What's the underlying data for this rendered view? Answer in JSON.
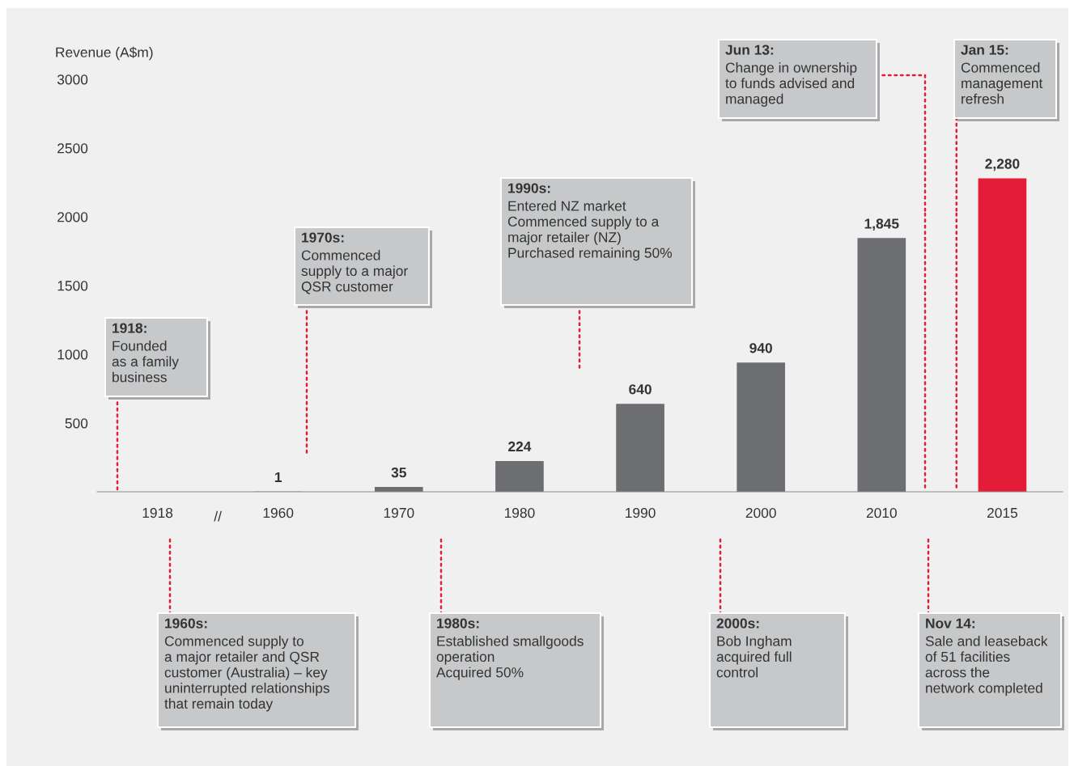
{
  "chart_data": {
    "type": "bar",
    "ylabel": "Revenue (A$m)",
    "categories": [
      "1918",
      "1960",
      "1970",
      "1980",
      "1990",
      "2000",
      "2010",
      "2015"
    ],
    "values": [
      null,
      1,
      35,
      224,
      640,
      940,
      1845,
      2280
    ],
    "colors": [
      "#6d6e71",
      "#6d6e71",
      "#6d6e71",
      "#6d6e71",
      "#6d6e71",
      "#6d6e71",
      "#6d6e71",
      "#e31d38"
    ],
    "value_labels": [
      null,
      "1",
      "35",
      "224",
      "640",
      "940",
      "1,845",
      "2,280"
    ],
    "ylim": [
      0,
      3000
    ],
    "yticks": [
      500,
      1000,
      1500,
      2000,
      2500,
      3000
    ],
    "grid": false,
    "annotations": [
      "1918:\nFounded\nas a family\nbusiness",
      "1970s:\nCommenced\nsupply to a major\nQSR customer",
      "1990s:\nEntered NZ market\nCommenced supply to a\nmajor retailer (NZ)\nPurchased remaining 50%",
      "Jun 13:\nChange in ownership\nto funds advised and\nmanaged",
      "Jan 15:\nCommenced\nmanagement\nrefresh",
      "1960s:\nCommenced supply to\na major retailer and QSR\ncustomer (Australia) – key\nuninterrupted relationships\nthat remain today",
      "1980s:\nEstablished smallgoods\noperation\nAcquired 50%",
      "2000s:\nBob Ingham\nacquired full\ncontrol",
      "Nov 14:\nSale and leaseback\nof 51 facilities\nacross the\nnetwork completed",
      "//"
    ]
  }
}
